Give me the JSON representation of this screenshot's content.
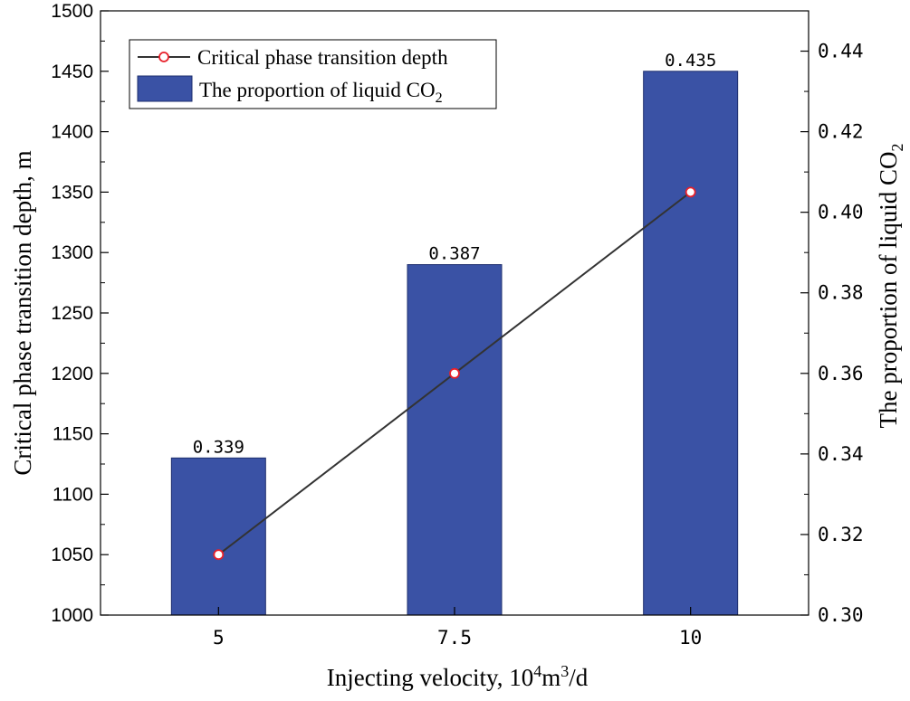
{
  "chart_data": {
    "type": "bar",
    "categories": [
      "5",
      "7.5",
      "10"
    ],
    "series": [
      {
        "name": "The proportion of liquid CO",
        "name_sub": "2",
        "type": "bar",
        "axis": "right",
        "values": [
          0.339,
          0.387,
          0.435
        ],
        "labels": [
          "0.339",
          "0.387",
          "0.435"
        ]
      },
      {
        "name": "Critical phase transition depth",
        "type": "line",
        "axis": "left",
        "values": [
          1050,
          1200,
          1350
        ]
      }
    ],
    "xlabel": {
      "main": "Injecting velocity, 10",
      "sup1": "4",
      "mid": "m",
      "sup2": "3",
      "tail": "/d"
    },
    "ylabel_left": "Critical phase transition depth, m",
    "ylabel_right": {
      "main": "The proportion of liquid CO",
      "sub": "2"
    },
    "ylim_left": [
      1000,
      1500
    ],
    "ylim_right": [
      0.3,
      0.45
    ],
    "yticks_left": [
      "1000",
      "1050",
      "1100",
      "1150",
      "1200",
      "1250",
      "1300",
      "1350",
      "1400",
      "1450",
      "1500"
    ],
    "yticks_right": [
      "0.30",
      "0.32",
      "0.34",
      "0.36",
      "0.38",
      "0.40",
      "0.42",
      "0.44"
    ],
    "xtick_labels": [
      "5",
      "7.5",
      "10"
    ],
    "legend_position": "top-left",
    "grid": false,
    "colors": {
      "bar": "#3a52a5",
      "bar_edge": "#1e2f6e",
      "line": "#333333",
      "marker_edge": "#e8202a",
      "marker_fill": "#ffffff"
    }
  }
}
